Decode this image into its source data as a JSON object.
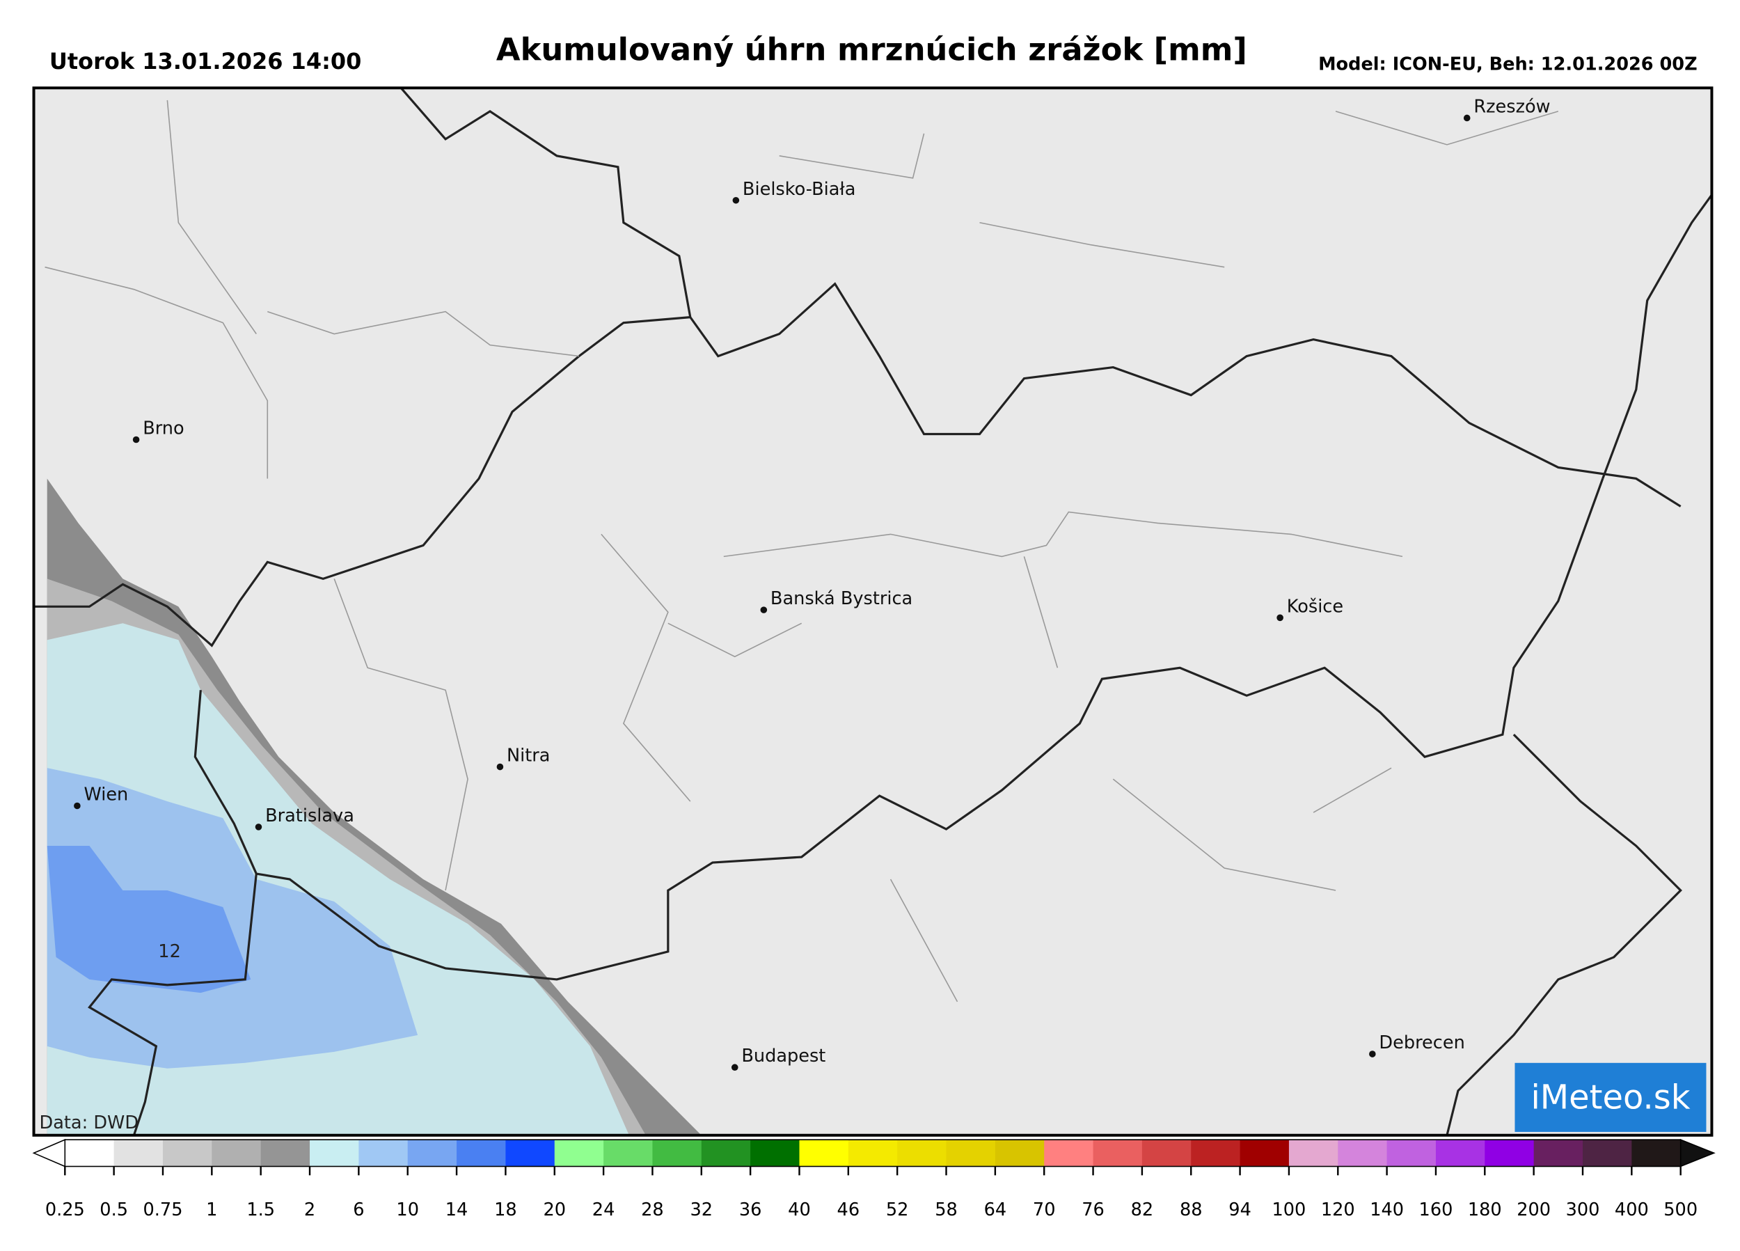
{
  "header": {
    "datetime": "Utorok 13.01.2026 14:00",
    "title": "Akumulovaný úhrn mrznúcich zrážok [mm]",
    "model": "Model: ICON-EU, Beh: 12.01.2026 00Z"
  },
  "map": {
    "cities": [
      {
        "name": "Rzeszów"
      },
      {
        "name": "Bielsko-Biała"
      },
      {
        "name": "Brno"
      },
      {
        "name": "Banská Bystrica"
      },
      {
        "name": "Košice"
      },
      {
        "name": "Nitra"
      },
      {
        "name": "Wien"
      },
      {
        "name": "Bratislava"
      },
      {
        "name": "Budapest"
      },
      {
        "name": "Debrecen"
      }
    ],
    "contour_label": "12",
    "source": "Data: DWD",
    "logo": "iMeteo.sk"
  },
  "colorbar": {
    "ticks": [
      0.25,
      0.5,
      0.75,
      1,
      1.5,
      2,
      6,
      10,
      14,
      18,
      20,
      24,
      28,
      32,
      36,
      40,
      46,
      52,
      58,
      64,
      70,
      76,
      82,
      88,
      94,
      100,
      120,
      140,
      160,
      180,
      200,
      300,
      400,
      500
    ],
    "colors": [
      "#ffffff",
      "#e2e2e2",
      "#c8c8c8",
      "#b0b0b0",
      "#959595",
      "#c9eef2",
      "#a0c8f4",
      "#78a6f2",
      "#4a80f2",
      "#1048ff",
      "#90ff90",
      "#68dc68",
      "#42bb42",
      "#229222",
      "#007000",
      "#ffff00",
      "#f4ea00",
      "#ecde00",
      "#e4d200",
      "#d8c400",
      "#ff8080",
      "#ea6060",
      "#d44444",
      "#bc2222",
      "#a00000",
      "#e4a8d0",
      "#d484dc",
      "#c062e0",
      "#a832e4",
      "#9000e4",
      "#682060",
      "#4e2444",
      "#201818"
    ],
    "under_color": "#ffffff",
    "over_color": "#111111"
  }
}
